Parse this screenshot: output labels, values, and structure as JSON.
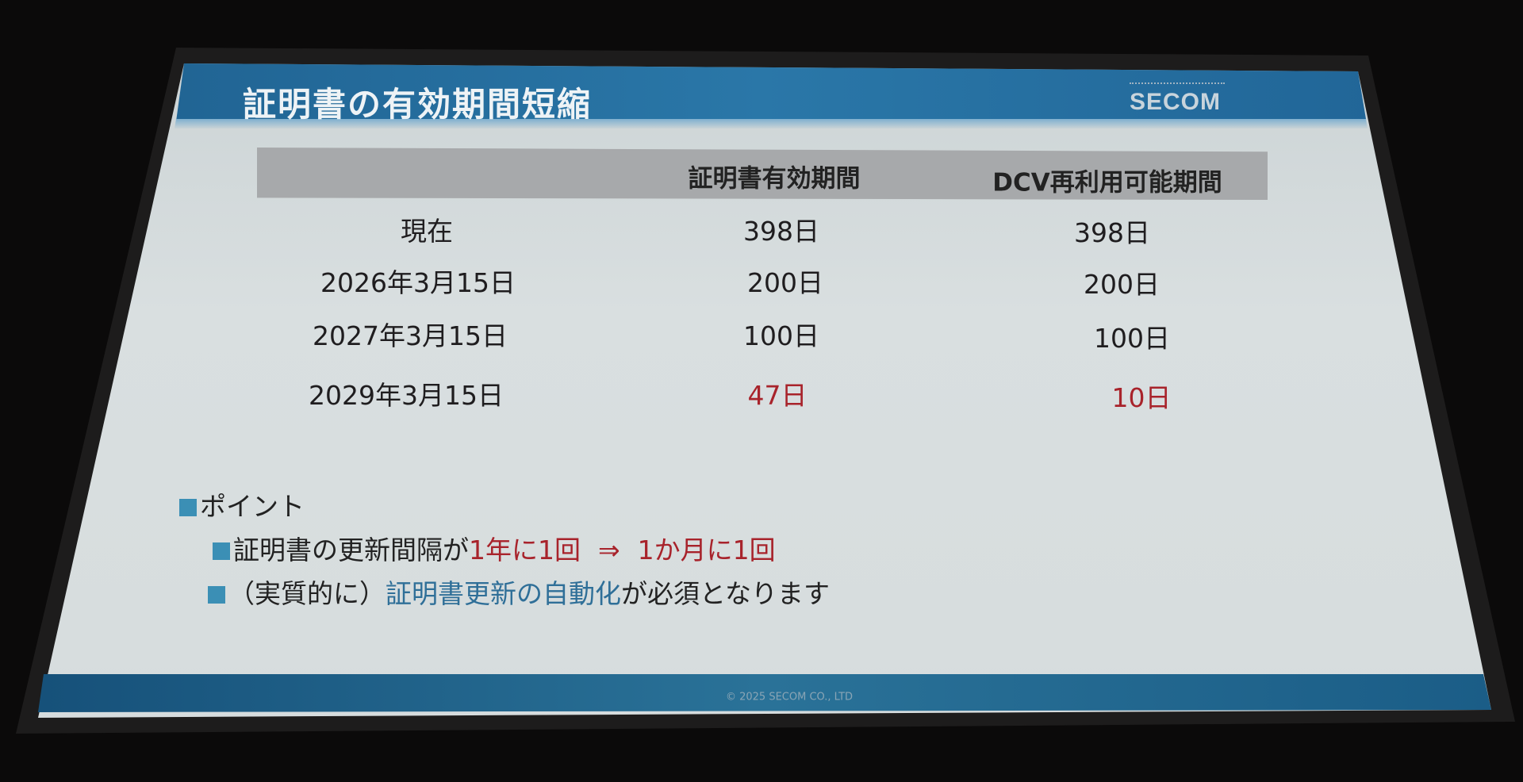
{
  "slide": {
    "title": "証明書の有効期間短縮",
    "logo": "SECOM",
    "footer": "© 2025 SECOM CO., LTD"
  },
  "table": {
    "headers": [
      "",
      "証明書有効期間",
      "DCV再利用可能期間"
    ],
    "rows": [
      {
        "date": "現在",
        "validity": "398日",
        "dcv": "398日"
      },
      {
        "date": "2026年3月15日",
        "validity": "200日",
        "dcv": "200日"
      },
      {
        "date": "2027年3月15日",
        "validity": "100日",
        "dcv": "100日"
      },
      {
        "date": "2029年3月15日",
        "validity": "47日",
        "dcv": "10日"
      }
    ]
  },
  "points": {
    "heading": "ポイント",
    "item1": {
      "prefix": "証明書の更新間隔が",
      "from": "1年に1回",
      "arrow": "⇒",
      "to": "1か月に1回"
    },
    "item2": {
      "prefix": "（実質的に）",
      "highlight": "証明書更新の自動化",
      "suffix": "が必須となります"
    }
  },
  "colors": {
    "header_band": "#2a77a8",
    "highlight_red": "#a8232b",
    "highlight_blue": "#2f6f98",
    "bullet": "#3b8fb5"
  }
}
